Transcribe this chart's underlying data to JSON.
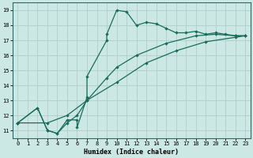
{
  "xlabel": "Humidex (Indice chaleur)",
  "ylabel": "",
  "bg_color": "#cce8e4",
  "grid_color": "#b0cccc",
  "line_color": "#1a6b5a",
  "xlim": [
    -0.5,
    23.5
  ],
  "ylim": [
    10.5,
    19.5
  ],
  "xticks": [
    0,
    1,
    2,
    3,
    4,
    5,
    6,
    7,
    8,
    9,
    10,
    11,
    12,
    13,
    14,
    15,
    16,
    17,
    18,
    19,
    20,
    21,
    22,
    23
  ],
  "yticks": [
    11,
    12,
    13,
    14,
    15,
    16,
    17,
    18,
    19
  ],
  "series1": [
    [
      0,
      11.5
    ],
    [
      2,
      12.5
    ],
    [
      3,
      11.0
    ],
    [
      4,
      10.8
    ],
    [
      5,
      11.7
    ],
    [
      6,
      11.7
    ],
    [
      6,
      11.2
    ],
    [
      7,
      13.2
    ],
    [
      7,
      14.6
    ],
    [
      9,
      17.0
    ],
    [
      9,
      17.4
    ],
    [
      10,
      19.0
    ],
    [
      11,
      18.9
    ],
    [
      12,
      18.0
    ],
    [
      13,
      18.2
    ],
    [
      14,
      18.1
    ],
    [
      15,
      17.8
    ],
    [
      16,
      17.5
    ],
    [
      17,
      17.5
    ],
    [
      18,
      17.6
    ],
    [
      19,
      17.4
    ],
    [
      20,
      17.5
    ],
    [
      21,
      17.4
    ],
    [
      22,
      17.3
    ],
    [
      23,
      17.3
    ]
  ],
  "series2": [
    [
      0,
      11.5
    ],
    [
      2,
      12.5
    ],
    [
      3,
      11.0
    ],
    [
      4,
      10.8
    ],
    [
      5,
      11.5
    ],
    [
      6,
      12.0
    ],
    [
      7,
      13.0
    ],
    [
      9,
      14.5
    ],
    [
      10,
      15.2
    ],
    [
      12,
      16.0
    ],
    [
      15,
      16.8
    ],
    [
      18,
      17.3
    ],
    [
      20,
      17.4
    ],
    [
      22,
      17.3
    ],
    [
      23,
      17.3
    ]
  ],
  "series3": [
    [
      0,
      11.5
    ],
    [
      3,
      11.5
    ],
    [
      5,
      12.0
    ],
    [
      7,
      13.0
    ],
    [
      10,
      14.2
    ],
    [
      13,
      15.5
    ],
    [
      16,
      16.3
    ],
    [
      19,
      16.9
    ],
    [
      22,
      17.2
    ],
    [
      23,
      17.3
    ]
  ]
}
